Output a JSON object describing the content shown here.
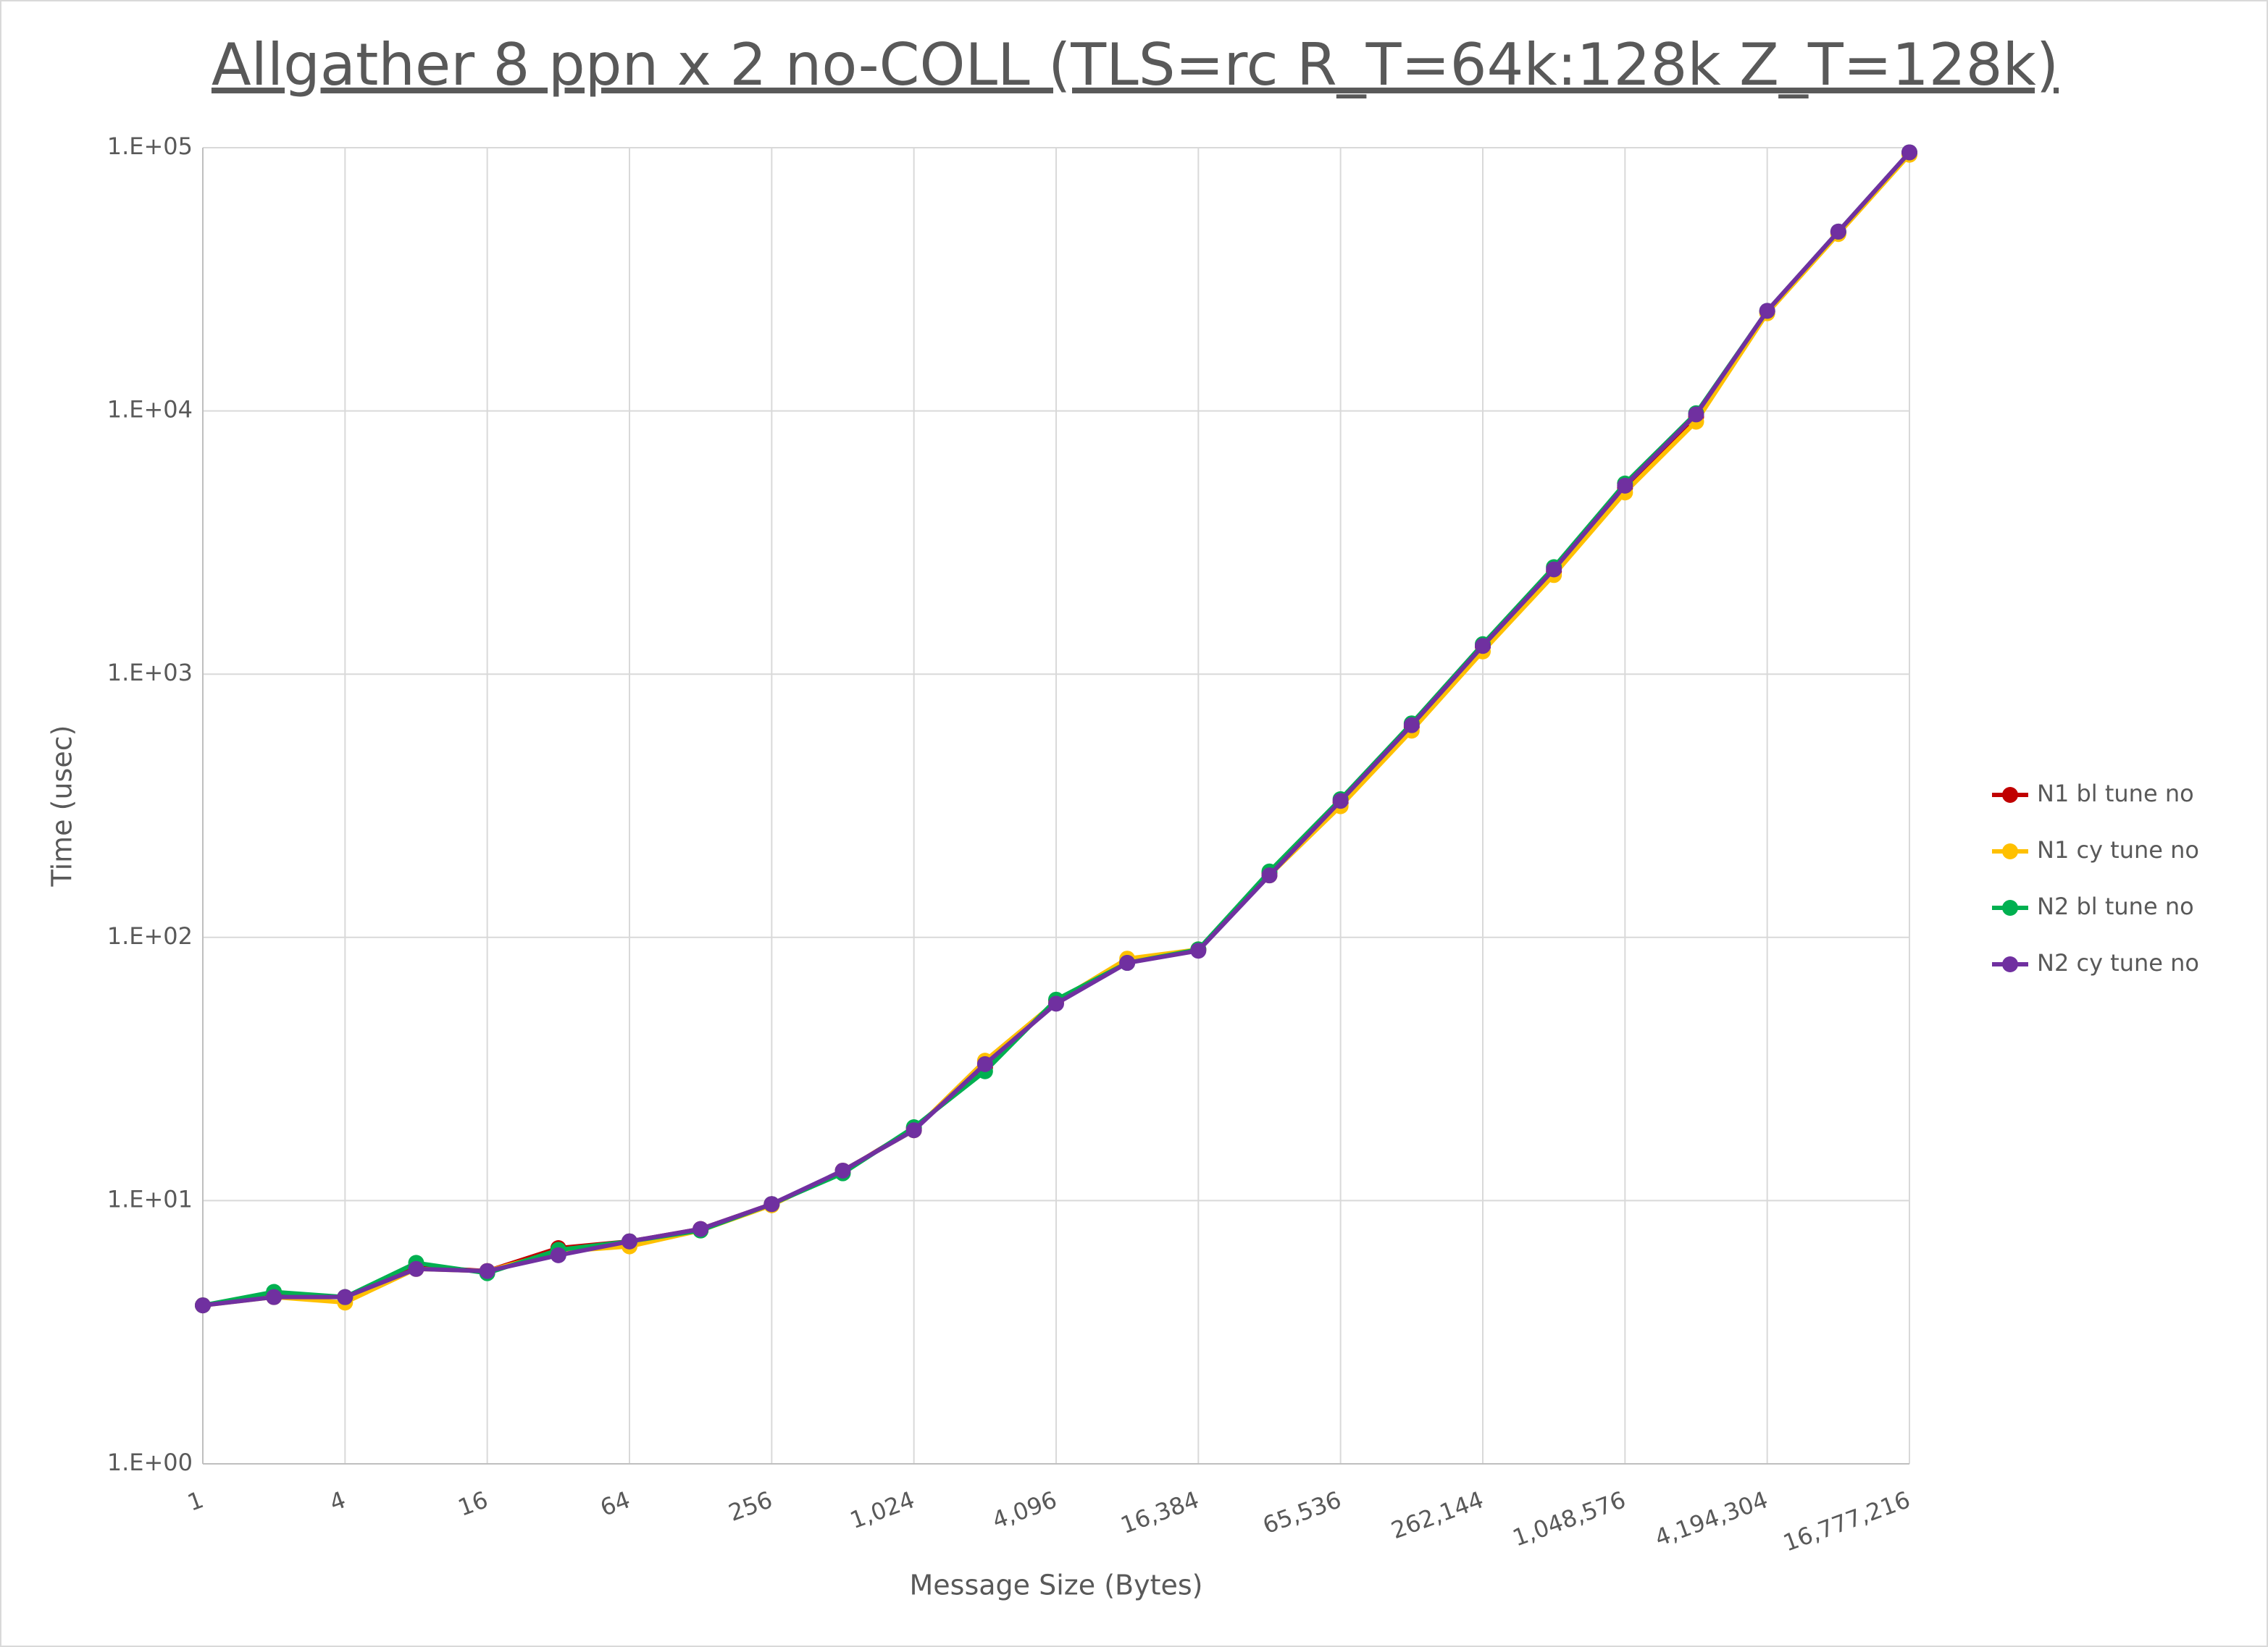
{
  "chart_data": {
    "type": "line",
    "title": "Allgather 8 ppn x 2 no-COLL (TLS=rc R_T=64k:128k Z_T=128k)",
    "x_label": "Message Size (Bytes)",
    "y_label": "Time (usec)",
    "x_scale": "log2",
    "y_scale": "log10",
    "grid": true,
    "legend": "right",
    "x": [
      1,
      2,
      4,
      8,
      16,
      32,
      64,
      128,
      256,
      512,
      1024,
      2048,
      4096,
      8192,
      16384,
      32768,
      65536,
      131072,
      262144,
      524288,
      1048576,
      2097152,
      4194304,
      8388608,
      16777216
    ],
    "xlim": [
      1,
      16777216
    ],
    "xticks": [
      {
        "value": 1,
        "label": "1"
      },
      {
        "value": 4,
        "label": "4"
      },
      {
        "value": 16,
        "label": "16"
      },
      {
        "value": 64,
        "label": "64"
      },
      {
        "value": 256,
        "label": "256"
      },
      {
        "value": 1024,
        "label": "1,024"
      },
      {
        "value": 4096,
        "label": "4,096"
      },
      {
        "value": 16384,
        "label": "16,384"
      },
      {
        "value": 65536,
        "label": "65,536"
      },
      {
        "value": 262144,
        "label": "262,144"
      },
      {
        "value": 1048576,
        "label": "1,048,576"
      },
      {
        "value": 4194304,
        "label": "4,194,304"
      },
      {
        "value": 16777216,
        "label": "16,777,216"
      }
    ],
    "ylim": [
      1,
      100000
    ],
    "yticks": [
      {
        "value": 1,
        "label": "1.E+00"
      },
      {
        "value": 10,
        "label": "1.E+01"
      },
      {
        "value": 100,
        "label": "1.E+02"
      },
      {
        "value": 1000,
        "label": "1.E+03"
      },
      {
        "value": 10000,
        "label": "1.E+04"
      },
      {
        "value": 100000,
        "label": "1.E+05"
      }
    ],
    "series": [
      {
        "name": "N1 bl tune no",
        "color": "#c00000",
        "values": [
          4.0,
          4.4,
          4.3,
          5.6,
          5.4,
          6.6,
          7.0,
          7.8,
          9.7,
          12.9,
          18.8,
          32,
          57,
          81,
          90,
          175,
          325,
          630,
          1270,
          2450,
          5100,
          9500,
          23800,
          47500,
          95000
        ]
      },
      {
        "name": "N1 cy tune no",
        "color": "#ffc000",
        "values": [
          4.0,
          4.3,
          4.1,
          5.5,
          5.4,
          6.4,
          6.7,
          7.7,
          9.6,
          13,
          18.5,
          34,
          57,
          83,
          90,
          172,
          315,
          610,
          1220,
          2380,
          4900,
          9100,
          23500,
          47000,
          94000
        ]
      },
      {
        "name": "N2 bl tune no",
        "color": "#00b050",
        "values": [
          4.0,
          4.5,
          4.3,
          5.8,
          5.3,
          6.5,
          7.0,
          7.7,
          9.7,
          12.7,
          19,
          31,
          58,
          80,
          90,
          178,
          335,
          650,
          1300,
          2550,
          5300,
          9800,
          24000,
          48000,
          96000
        ]
      },
      {
        "name": "N2 cy tune no",
        "color": "#7030a0",
        "values": [
          4.0,
          4.3,
          4.3,
          5.5,
          5.4,
          6.2,
          7.0,
          7.8,
          9.7,
          13,
          18.5,
          33,
          56,
          80,
          89,
          172,
          330,
          640,
          1280,
          2500,
          5200,
          9700,
          24000,
          48000,
          96000
        ]
      }
    ]
  }
}
